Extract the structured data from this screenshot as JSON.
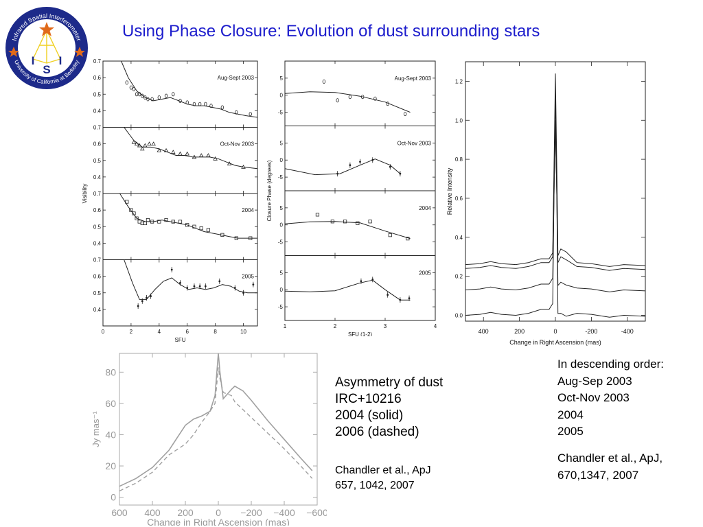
{
  "header": {
    "title": "Using Phase Closure: Evolution of dust surrounding stars",
    "logo": {
      "ring_top": "Infrared Spatial Interferometer",
      "ring_bottom": "University of California at Berkeley",
      "letters": [
        "I",
        "S",
        "I"
      ]
    }
  },
  "captions": {
    "right": [
      "In descending order:",
      "Aug-Sep 2003",
      "Oct-Nov 2003",
      "2004",
      "2005"
    ],
    "right_ref": [
      "Chandler et al., ApJ,",
      "670,1347, 2007"
    ],
    "middle": [
      "Asymmetry of dust",
      "IRC+10216",
      "2004 (solid)",
      "2006 (dashed)"
    ],
    "middle_ref": [
      "Chandler et al., ApJ",
      "657, 1042, 2007"
    ]
  },
  "colors": {
    "title": "#1c1ccc",
    "solid": "#222222",
    "bottom_solid": "#a0a0a0",
    "bottom_dashed": "#a0a0a0"
  },
  "chart_data": [
    {
      "type": "scatter",
      "xlabel": "SFU",
      "ylabel": "Visibility",
      "xlim": [
        0,
        11
      ],
      "ylim": [
        0.3,
        0.7
      ],
      "x_ticks": [
        0,
        2,
        4,
        6,
        8,
        10
      ],
      "y_ticks": [
        0.4,
        0.5,
        0.6,
        0.7
      ],
      "panels": [
        {
          "label": "Aug-Sept 2003",
          "points": [
            [
              1.7,
              0.57
            ],
            [
              2.0,
              0.54
            ],
            [
              2.2,
              0.53
            ],
            [
              2.4,
              0.5
            ],
            [
              2.6,
              0.5
            ],
            [
              2.8,
              0.49
            ],
            [
              3.0,
              0.48
            ],
            [
              3.2,
              0.47
            ],
            [
              3.5,
              0.47
            ],
            [
              4.0,
              0.48
            ],
            [
              4.5,
              0.49
            ],
            [
              5.0,
              0.5
            ],
            [
              5.5,
              0.46
            ],
            [
              6.0,
              0.45
            ],
            [
              6.5,
              0.44
            ],
            [
              6.9,
              0.44
            ],
            [
              7.3,
              0.44
            ],
            [
              7.7,
              0.43
            ],
            [
              8.5,
              0.42
            ],
            [
              9.5,
              0.39
            ],
            [
              10.5,
              0.38
            ]
          ],
          "curve": [
            [
              1.3,
              0.7
            ],
            [
              1.8,
              0.6
            ],
            [
              2.4,
              0.52
            ],
            [
              3.0,
              0.48
            ],
            [
              3.6,
              0.46
            ],
            [
              4.2,
              0.47
            ],
            [
              4.8,
              0.48
            ],
            [
              5.4,
              0.46
            ],
            [
              6.0,
              0.44
            ],
            [
              6.6,
              0.43
            ],
            [
              7.2,
              0.43
            ],
            [
              7.8,
              0.42
            ],
            [
              8.4,
              0.41
            ],
            [
              9.0,
              0.39
            ],
            [
              9.6,
              0.38
            ],
            [
              10.2,
              0.37
            ],
            [
              11.0,
              0.36
            ]
          ]
        },
        {
          "label": "Oct-Nov 2003",
          "points": [
            [
              2.2,
              0.61
            ],
            [
              2.4,
              0.6
            ],
            [
              2.6,
              0.59
            ],
            [
              2.8,
              0.57
            ],
            [
              3.0,
              0.59
            ],
            [
              3.3,
              0.6
            ],
            [
              3.6,
              0.6
            ],
            [
              4.0,
              0.56
            ],
            [
              4.5,
              0.56
            ],
            [
              5.0,
              0.55
            ],
            [
              5.5,
              0.54
            ],
            [
              6.0,
              0.54
            ],
            [
              6.5,
              0.52
            ],
            [
              7.0,
              0.53
            ],
            [
              7.5,
              0.53
            ],
            [
              8.0,
              0.51
            ],
            [
              9.0,
              0.48
            ],
            [
              10.0,
              0.46
            ]
          ],
          "curve": [
            [
              1.5,
              0.7
            ],
            [
              2.2,
              0.62
            ],
            [
              2.8,
              0.58
            ],
            [
              3.4,
              0.58
            ],
            [
              4.0,
              0.57
            ],
            [
              4.6,
              0.55
            ],
            [
              5.2,
              0.53
            ],
            [
              5.8,
              0.53
            ],
            [
              6.4,
              0.52
            ],
            [
              7.0,
              0.52
            ],
            [
              7.6,
              0.52
            ],
            [
              8.2,
              0.51
            ],
            [
              8.8,
              0.49
            ],
            [
              9.4,
              0.47
            ],
            [
              10.0,
              0.46
            ],
            [
              11.0,
              0.45
            ]
          ]
        },
        {
          "label": "2004",
          "points": [
            [
              1.7,
              0.65
            ],
            [
              2.0,
              0.6
            ],
            [
              2.2,
              0.58
            ],
            [
              2.4,
              0.55
            ],
            [
              2.6,
              0.53
            ],
            [
              2.8,
              0.52
            ],
            [
              3.0,
              0.52
            ],
            [
              3.2,
              0.54
            ],
            [
              3.5,
              0.53
            ],
            [
              4.0,
              0.53
            ],
            [
              4.5,
              0.54
            ],
            [
              5.0,
              0.53
            ],
            [
              5.5,
              0.53
            ],
            [
              6.0,
              0.51
            ],
            [
              6.5,
              0.5
            ],
            [
              7.0,
              0.49
            ],
            [
              7.5,
              0.48
            ],
            [
              8.5,
              0.45
            ],
            [
              9.5,
              0.43
            ],
            [
              10.5,
              0.43
            ]
          ],
          "curve": [
            [
              1.2,
              0.7
            ],
            [
              1.8,
              0.62
            ],
            [
              2.4,
              0.55
            ],
            [
              3.0,
              0.53
            ],
            [
              3.6,
              0.53
            ],
            [
              4.2,
              0.54
            ],
            [
              4.8,
              0.53
            ],
            [
              5.4,
              0.52
            ],
            [
              6.0,
              0.51
            ],
            [
              6.6,
              0.49
            ],
            [
              7.2,
              0.47
            ],
            [
              7.8,
              0.46
            ],
            [
              8.4,
              0.45
            ],
            [
              9.0,
              0.44
            ],
            [
              9.6,
              0.43
            ],
            [
              10.2,
              0.43
            ],
            [
              11.0,
              0.43
            ]
          ]
        },
        {
          "label": "2005",
          "points": [
            [
              2.5,
              0.42
            ],
            [
              2.8,
              0.45
            ],
            [
              3.1,
              0.47
            ],
            [
              3.4,
              0.48
            ],
            [
              4.9,
              0.64
            ],
            [
              5.5,
              0.56
            ],
            [
              6.0,
              0.53
            ],
            [
              6.5,
              0.54
            ],
            [
              6.9,
              0.54
            ],
            [
              7.3,
              0.54
            ],
            [
              8.3,
              0.57
            ],
            [
              9.4,
              0.53
            ],
            [
              10.0,
              0.5
            ],
            [
              10.7,
              0.55
            ]
          ],
          "curve": [
            [
              1.5,
              0.7
            ],
            [
              2.1,
              0.56
            ],
            [
              2.6,
              0.46
            ],
            [
              3.1,
              0.46
            ],
            [
              3.7,
              0.52
            ],
            [
              4.3,
              0.57
            ],
            [
              4.9,
              0.59
            ],
            [
              5.5,
              0.55
            ],
            [
              6.1,
              0.52
            ],
            [
              6.7,
              0.53
            ],
            [
              7.3,
              0.52
            ],
            [
              7.9,
              0.53
            ],
            [
              8.5,
              0.55
            ],
            [
              9.1,
              0.54
            ],
            [
              9.7,
              0.51
            ],
            [
              10.3,
              0.5
            ],
            [
              11.0,
              0.5
            ]
          ]
        }
      ]
    },
    {
      "type": "scatter",
      "xlabel": "SFU (1-2)",
      "ylabel": "Closure Phase (degrees)",
      "xlim": [
        1,
        4
      ],
      "ylim": [
        -9,
        10
      ],
      "x_ticks": [
        1,
        2,
        3,
        4
      ],
      "y_ticks": [
        -5,
        0,
        5
      ],
      "panels": [
        {
          "label": "Aug-Sept 2003",
          "points": [
            [
              1.78,
              4.0
            ],
            [
              2.05,
              -1.5
            ],
            [
              2.3,
              -0.5
            ],
            [
              2.55,
              -0.5
            ],
            [
              2.8,
              -1.0
            ],
            [
              3.05,
              -2.5
            ],
            [
              3.4,
              -5.5
            ]
          ],
          "curve": [
            [
              1.0,
              0.5
            ],
            [
              1.5,
              1.0
            ],
            [
              2.0,
              0.8
            ],
            [
              2.5,
              -0.3
            ],
            [
              3.0,
              -2.0
            ],
            [
              3.5,
              -5.0
            ]
          ]
        },
        {
          "label": "Oct-Nov 2003",
          "points": [
            [
              2.05,
              -4.0
            ],
            [
              2.3,
              -1.5
            ],
            [
              2.5,
              -0.5
            ],
            [
              2.75,
              0.0
            ],
            [
              3.1,
              -2.0
            ],
            [
              3.3,
              -4.0
            ]
          ],
          "curve": [
            [
              1.0,
              -2.5
            ],
            [
              1.6,
              -4.3
            ],
            [
              2.1,
              -4.0
            ],
            [
              2.5,
              -1.5
            ],
            [
              2.8,
              0.3
            ],
            [
              3.1,
              -1.5
            ],
            [
              3.3,
              -4.0
            ]
          ]
        },
        {
          "label": "2004",
          "points": [
            [
              1.65,
              3.0
            ],
            [
              1.95,
              1.0
            ],
            [
              2.2,
              1.0
            ],
            [
              2.45,
              0.5
            ],
            [
              2.7,
              1.0
            ],
            [
              3.1,
              -3.0
            ],
            [
              3.45,
              -4.0
            ]
          ],
          "curve": [
            [
              1.0,
              0.3
            ],
            [
              1.5,
              0.9
            ],
            [
              2.0,
              1.0
            ],
            [
              2.5,
              0.6
            ],
            [
              3.0,
              -1.8
            ],
            [
              3.5,
              -4.0
            ]
          ]
        },
        {
          "label": "2005",
          "points": [
            [
              2.52,
              2.5
            ],
            [
              2.75,
              3.0
            ],
            [
              3.05,
              -1.5
            ],
            [
              3.3,
              -3.0
            ],
            [
              3.48,
              -2.5
            ]
          ],
          "curve": [
            [
              1.0,
              -0.4
            ],
            [
              1.5,
              -0.6
            ],
            [
              2.0,
              -0.3
            ],
            [
              2.5,
              2.0
            ],
            [
              2.75,
              2.8
            ],
            [
              3.0,
              0.0
            ],
            [
              3.3,
              -3.0
            ],
            [
              3.5,
              -3.0
            ]
          ]
        }
      ]
    },
    {
      "type": "line",
      "xlabel": "Change in Right Ascension (mas)",
      "ylabel": "Relative Intensity",
      "xlim": [
        500,
        -500
      ],
      "ylim": [
        -0.03,
        1.3
      ],
      "x_ticks": [
        400,
        200,
        0,
        -200,
        -400
      ],
      "y_ticks": [
        0.0,
        0.2,
        0.4,
        0.6,
        0.8,
        1.0,
        1.2
      ],
      "series": [
        {
          "peak": 1.24,
          "baseline": 0.26,
          "shoulder": 0.34
        },
        {
          "peak": 1.12,
          "baseline": 0.24,
          "shoulder": 0.3
        },
        {
          "peak": 1.0,
          "baseline": 0.13,
          "shoulder": 0.17
        },
        {
          "peak": 0.99,
          "baseline": 0.0,
          "shoulder": 0.01
        }
      ]
    },
    {
      "type": "line",
      "xlabel": "Change in Right Ascension (mas)",
      "ylabel": "Jy mas⁻¹",
      "xlim": [
        600,
        -600
      ],
      "ylim": [
        -5,
        92
      ],
      "x_ticks": [
        600,
        400,
        200,
        0,
        -200,
        -400,
        -600
      ],
      "y_ticks": [
        0,
        20,
        40,
        60,
        80
      ],
      "series": [
        {
          "x": [
            600,
            500,
            400,
            300,
            200,
            150,
            100,
            50,
            20,
            0,
            -10,
            -30,
            -80,
            -100,
            -150,
            -200,
            -300,
            -400,
            -500,
            -570
          ],
          "y": [
            7,
            12,
            19,
            30,
            46,
            50,
            52,
            55,
            65,
            92,
            80,
            63,
            69,
            71,
            68,
            62,
            49,
            37,
            25,
            17
          ]
        },
        {
          "x": [
            600,
            500,
            400,
            300,
            200,
            150,
            100,
            50,
            20,
            0,
            -10,
            -30,
            -80,
            -100,
            -150,
            -200,
            -300,
            -400,
            -500,
            -570
          ],
          "y": [
            4,
            9,
            16,
            27,
            34,
            40,
            48,
            55,
            60,
            83,
            76,
            67,
            65,
            61,
            56,
            51,
            41,
            31,
            20,
            12
          ]
        }
      ]
    }
  ]
}
